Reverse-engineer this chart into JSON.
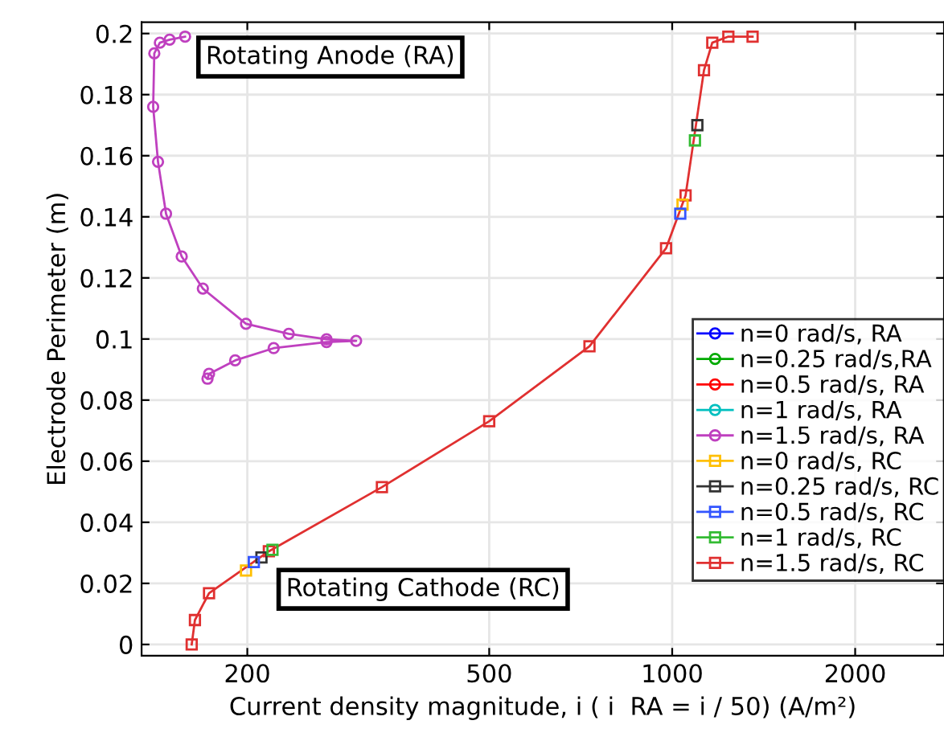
{
  "chart_data": {
    "type": "line",
    "xlabel": "Current density magnitude, i ( i  RA = i / 50) (A/m²)",
    "ylabel": "Electrode Perimeter (m)",
    "log": "x",
    "xlim": [
      134,
      2800
    ],
    "ylim": [
      -0.0037,
      0.2037
    ],
    "xticks": [
      200,
      500,
      1000,
      2000
    ],
    "yticks": [
      0,
      0.02,
      0.04,
      0.06,
      0.08,
      0.1,
      0.12,
      0.14,
      0.16,
      0.18,
      0.2
    ],
    "grid": true,
    "legend": "right",
    "annotations": [
      "Rotating Anode (RA)",
      "Rotating Cathode (RC)"
    ],
    "series": [
      {
        "name": "n=0 rad/s, RA",
        "color": "#0000ff",
        "marker": "circle"
      },
      {
        "name": "n=0.25 rad/s,RA",
        "color": "#00aa00",
        "marker": "circle"
      },
      {
        "name": "n=0.5 rad/s, RA",
        "color": "#ff0000",
        "marker": "circle"
      },
      {
        "name": "n=1 rad/s, RA",
        "color": "#00bfbf",
        "marker": "circle"
      },
      {
        "name": "n=1.5 rad/s, RA",
        "color": "#bf40bf",
        "marker": "circle",
        "x": [
          158,
          149,
          143.6,
          140.6,
          140,
          142.6,
          147,
          156,
          169,
          199,
          234,
          270,
          302,
          270,
          221,
          191,
          173,
          172
        ],
        "values": [
          0.199,
          0.198,
          0.197,
          0.1935,
          0.176,
          0.158,
          0.141,
          0.127,
          0.1165,
          0.105,
          0.1017,
          0.0999,
          0.0994,
          0.099,
          0.097,
          0.093,
          0.0886,
          0.087
        ]
      },
      {
        "name": "n=0 rad/s, RC",
        "type": "scatter",
        "color": "#ffbf00",
        "marker": "square",
        "x": [
          199,
          1040
        ],
        "values": [
          0.0242,
          0.144
        ]
      },
      {
        "name": "n=0.25 rad/s, RC",
        "type": "scatter",
        "color": "#333333",
        "marker": "square",
        "x": [
          211,
          1100
        ],
        "values": [
          0.0285,
          0.17
        ]
      },
      {
        "name": "n=0.5 rad/s, RC",
        "type": "scatter",
        "color": "#3355ff",
        "marker": "square",
        "x": [
          205,
          1031
        ],
        "values": [
          0.027,
          0.141
        ]
      },
      {
        "name": "n=1 rad/s, RC",
        "type": "scatter",
        "color": "#33bb33",
        "marker": "square",
        "x": [
          220,
          1090
        ],
        "values": [
          0.031,
          0.165
        ]
      },
      {
        "name": "n=1.5 rad/s, RC",
        "color": "#e03030",
        "marker": "square",
        "x": [
          162,
          164,
          173,
          217,
          333,
          500,
          731,
          977,
          1052,
          1128,
          1164,
          1237,
          1356
        ],
        "values": [
          0,
          0.008,
          0.0168,
          0.0305,
          0.0515,
          0.0731,
          0.0976,
          0.1297,
          0.147,
          0.188,
          0.197,
          0.199,
          0.199
        ]
      }
    ]
  }
}
